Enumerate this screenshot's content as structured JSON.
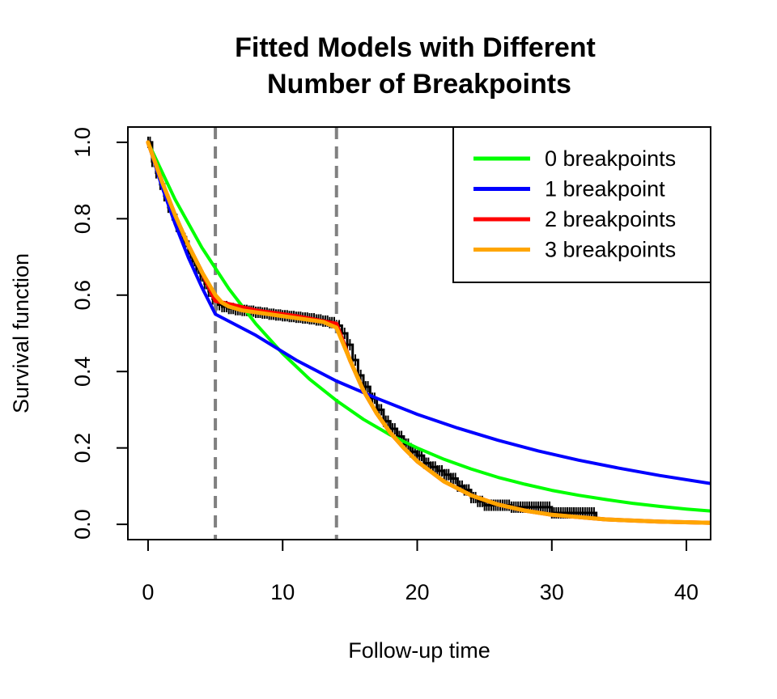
{
  "chart_data": {
    "type": "line",
    "title_lines": [
      "Fitted Models with Different",
      "Number of Breakpoints"
    ],
    "xlabel": "Follow-up time",
    "ylabel": "Survival function",
    "xlim": [
      -1.5,
      41.8
    ],
    "ylim": [
      -0.04,
      1.04
    ],
    "x_ticks": [
      0,
      10,
      20,
      30,
      40
    ],
    "y_ticks": [
      0.0,
      0.2,
      0.4,
      0.6,
      0.8,
      1.0
    ],
    "y_tick_labels": [
      "0.0",
      "0.2",
      "0.4",
      "0.6",
      "0.8",
      "1.0"
    ],
    "breakpoint_lines": [
      5,
      14
    ],
    "breakpoint_line_color": "#808080",
    "legend_position": "top-right",
    "km_color": "#000000",
    "km_points": [
      [
        0,
        1.0
      ],
      [
        0.3,
        0.95
      ],
      [
        0.6,
        0.92
      ],
      [
        0.9,
        0.89
      ],
      [
        1.2,
        0.86
      ],
      [
        1.5,
        0.83
      ],
      [
        1.8,
        0.81
      ],
      [
        2.1,
        0.78
      ],
      [
        2.4,
        0.76
      ],
      [
        2.7,
        0.74
      ],
      [
        3.0,
        0.71
      ],
      [
        3.3,
        0.69
      ],
      [
        3.6,
        0.67
      ],
      [
        3.9,
        0.65
      ],
      [
        4.2,
        0.63
      ],
      [
        4.5,
        0.61
      ],
      [
        4.8,
        0.59
      ],
      [
        5.1,
        0.575
      ],
      [
        5.5,
        0.57
      ],
      [
        6.0,
        0.565
      ],
      [
        6.5,
        0.562
      ],
      [
        7.0,
        0.56
      ],
      [
        7.5,
        0.558
      ],
      [
        8.0,
        0.555
      ],
      [
        8.5,
        0.553
      ],
      [
        9.0,
        0.55
      ],
      [
        9.5,
        0.548
      ],
      [
        10.0,
        0.546
      ],
      [
        10.5,
        0.544
      ],
      [
        11.0,
        0.542
      ],
      [
        11.5,
        0.54
      ],
      [
        12.0,
        0.538
      ],
      [
        12.5,
        0.535
      ],
      [
        13.0,
        0.532
      ],
      [
        13.5,
        0.528
      ],
      [
        14.0,
        0.52
      ],
      [
        14.4,
        0.5
      ],
      [
        14.8,
        0.47
      ],
      [
        15.2,
        0.43
      ],
      [
        15.6,
        0.39
      ],
      [
        16.0,
        0.36
      ],
      [
        16.5,
        0.33
      ],
      [
        17.0,
        0.3
      ],
      [
        17.5,
        0.27
      ],
      [
        18.0,
        0.25
      ],
      [
        18.5,
        0.23
      ],
      [
        19.0,
        0.21
      ],
      [
        19.5,
        0.19
      ],
      [
        20.0,
        0.18
      ],
      [
        20.5,
        0.16
      ],
      [
        21.0,
        0.15
      ],
      [
        21.5,
        0.14
      ],
      [
        22.0,
        0.13
      ],
      [
        22.5,
        0.12
      ],
      [
        23.0,
        0.1
      ],
      [
        23.5,
        0.09
      ],
      [
        24.0,
        0.07
      ],
      [
        24.5,
        0.06
      ],
      [
        25.0,
        0.05
      ],
      [
        26.0,
        0.05
      ],
      [
        27.0,
        0.045
      ],
      [
        28.0,
        0.045
      ],
      [
        29.0,
        0.045
      ],
      [
        30.0,
        0.03
      ],
      [
        31.0,
        0.03
      ],
      [
        31.8,
        0.03
      ],
      [
        33.3,
        0.015
      ]
    ],
    "series": [
      {
        "name": "0 breakpoints",
        "color": "#00ff00",
        "width": 4,
        "x": [
          0,
          2,
          4,
          6,
          8,
          10,
          12,
          14,
          16,
          18,
          20,
          22,
          24,
          26,
          28,
          30,
          32,
          34,
          36,
          38,
          40,
          41.8
        ],
        "values": [
          1.0,
          0.851,
          0.724,
          0.617,
          0.525,
          0.447,
          0.38,
          0.324,
          0.275,
          0.234,
          0.2,
          0.17,
          0.145,
          0.123,
          0.105,
          0.089,
          0.076,
          0.065,
          0.055,
          0.047,
          0.04,
          0.035
        ]
      },
      {
        "name": "1 breakpoint",
        "color": "#0000ff",
        "width": 4,
        "x": [
          0,
          1,
          2,
          3,
          4,
          5,
          8,
          11,
          14,
          17,
          20,
          23,
          26,
          29,
          32,
          35,
          38,
          41.8
        ],
        "values": [
          1.0,
          0.887,
          0.787,
          0.698,
          0.62,
          0.55,
          0.495,
          0.43,
          0.375,
          0.33,
          0.288,
          0.252,
          0.22,
          0.192,
          0.168,
          0.147,
          0.128,
          0.107
        ]
      },
      {
        "name": "2 breakpoints",
        "color": "#ff0000",
        "width": 5,
        "x": [
          0,
          1,
          2,
          3,
          4,
          5,
          8,
          11,
          14,
          15,
          16,
          17,
          18,
          19,
          20,
          22,
          24,
          26,
          28,
          30,
          34,
          38,
          41.8
        ],
        "values": [
          1.0,
          0.9,
          0.81,
          0.73,
          0.66,
          0.585,
          0.56,
          0.545,
          0.525,
          0.43,
          0.35,
          0.29,
          0.24,
          0.2,
          0.165,
          0.112,
          0.076,
          0.052,
          0.036,
          0.025,
          0.013,
          0.007,
          0.004
        ]
      },
      {
        "name": "3 breakpoints",
        "color": "#ffa500",
        "width": 5,
        "x": [
          0,
          1,
          2,
          3,
          4,
          5,
          5.5,
          6,
          7,
          9,
          11,
          13,
          14,
          15,
          16,
          17,
          18,
          19,
          20,
          22,
          24,
          26,
          28,
          30,
          34,
          38,
          41.8
        ],
        "values": [
          1.0,
          0.9,
          0.81,
          0.73,
          0.66,
          0.6,
          0.58,
          0.57,
          0.56,
          0.55,
          0.54,
          0.53,
          0.515,
          0.43,
          0.35,
          0.29,
          0.24,
          0.2,
          0.165,
          0.112,
          0.076,
          0.052,
          0.036,
          0.025,
          0.013,
          0.007,
          0.004
        ]
      }
    ]
  }
}
